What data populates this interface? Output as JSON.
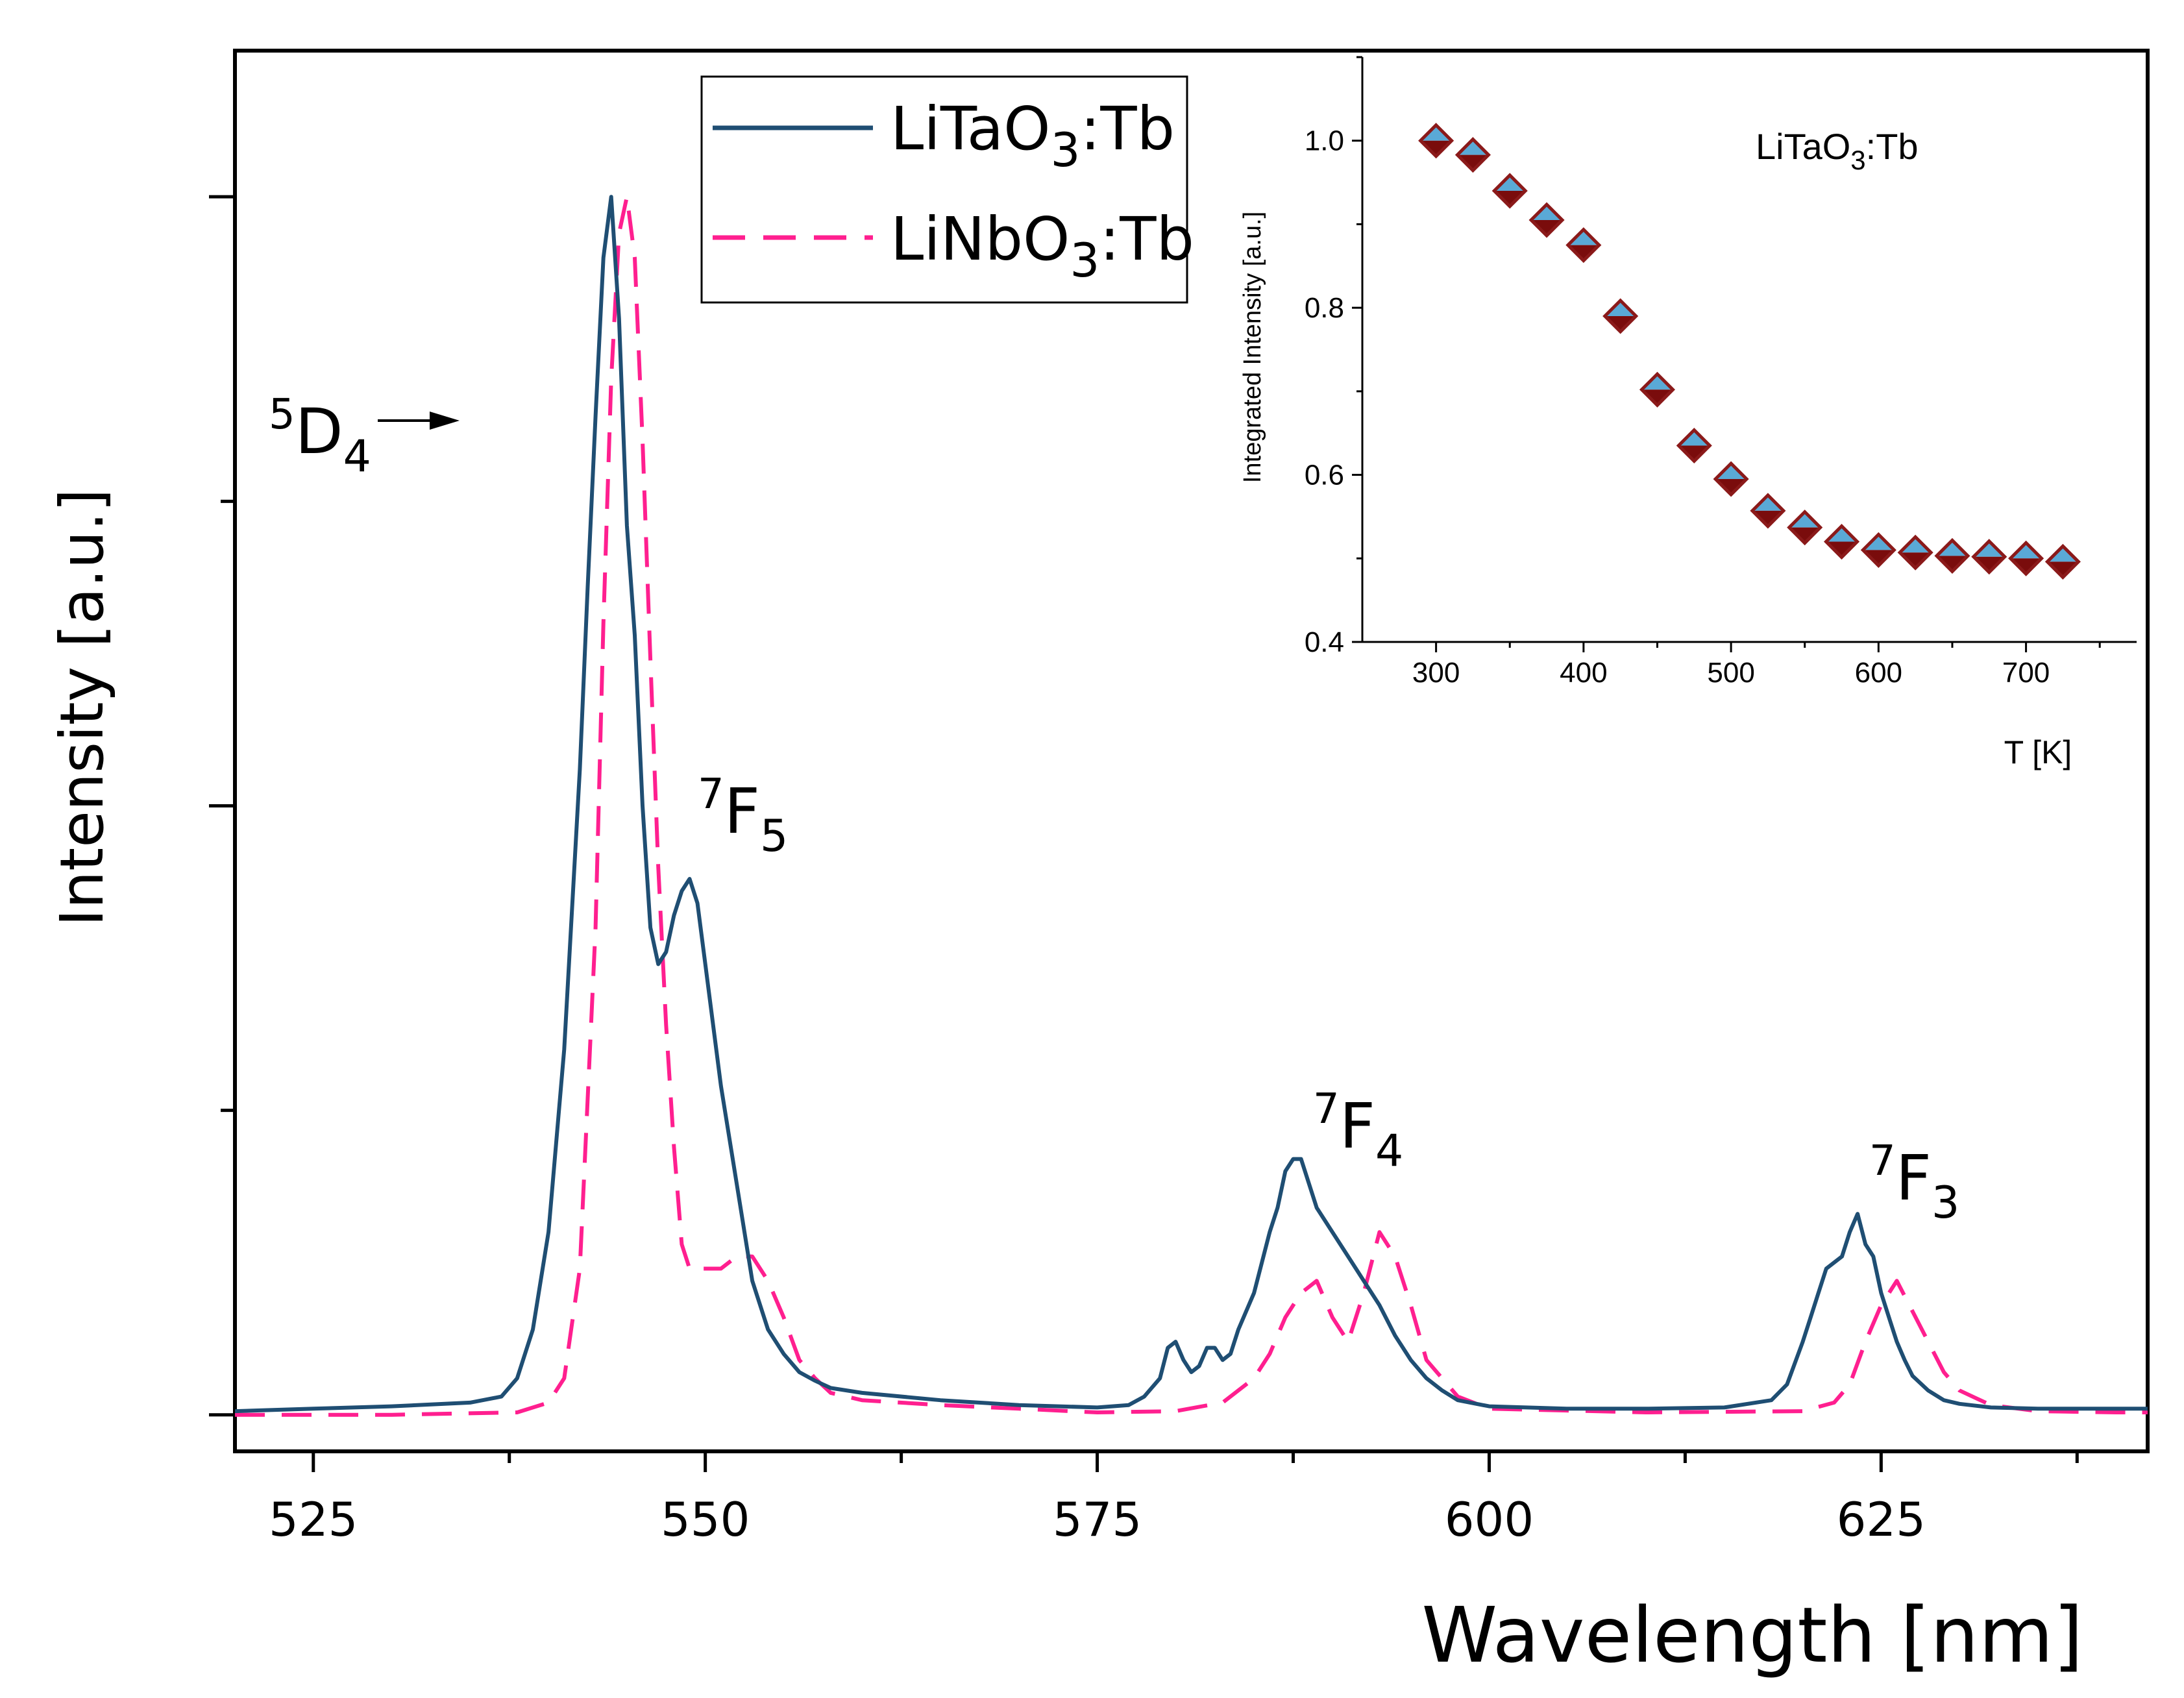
{
  "chart_data": [
    {
      "type": "line",
      "xlabel": "Wavelength [nm]",
      "ylabel": "Intensity [a.u.]",
      "xlim": [
        520,
        642
      ],
      "ylim": [
        -0.03,
        1.12
      ],
      "x_ticks": [
        "525",
        "550",
        "575",
        "600",
        "625"
      ],
      "x_tick_values": [
        525,
        550,
        575,
        600,
        625
      ],
      "y_ticks_labeled": false,
      "legend_position": "top-center",
      "colors": {
        "LiTaO3:Tb": "#1f4e73",
        "LiNbO3:Tb": "#ff1f8f"
      },
      "series": [
        {
          "name": "LiTaO3:Tb",
          "legend_label": {
            "base": "LiTaO",
            "sub": "3",
            "tail": ":Tb"
          },
          "line_style": "solid",
          "x": [
            520,
            525,
            530,
            535,
            537,
            538,
            539,
            540,
            541,
            542,
            542.5,
            543,
            543.5,
            544,
            544.5,
            545,
            545.5,
            546,
            546.5,
            547,
            547.5,
            548,
            548.5,
            549,
            549.5,
            550,
            551,
            552,
            553,
            554,
            555,
            556,
            557,
            558,
            560,
            565,
            570,
            575,
            577,
            578,
            579,
            579.5,
            580,
            580.5,
            581,
            581.5,
            582,
            582.5,
            583,
            583.5,
            584,
            585,
            586,
            586.5,
            587,
            587.5,
            588,
            589,
            590,
            591,
            592,
            593,
            594,
            595,
            596,
            597,
            598,
            600,
            605,
            610,
            615,
            618,
            619,
            620,
            620.5,
            621,
            621.5,
            622,
            622.5,
            623,
            623.5,
            624,
            624.5,
            625,
            625.5,
            626,
            626.5,
            627,
            628,
            629,
            630,
            632,
            635,
            640,
            642
          ],
          "y": [
            0.003,
            0.005,
            0.007,
            0.01,
            0.015,
            0.03,
            0.07,
            0.15,
            0.3,
            0.53,
            0.68,
            0.82,
            0.95,
            1.0,
            0.9,
            0.73,
            0.64,
            0.5,
            0.4,
            0.37,
            0.38,
            0.41,
            0.43,
            0.44,
            0.42,
            0.37,
            0.27,
            0.19,
            0.11,
            0.07,
            0.05,
            0.035,
            0.028,
            0.022,
            0.018,
            0.012,
            0.008,
            0.006,
            0.008,
            0.015,
            0.03,
            0.055,
            0.06,
            0.045,
            0.035,
            0.04,
            0.055,
            0.055,
            0.045,
            0.05,
            0.07,
            0.1,
            0.15,
            0.17,
            0.2,
            0.21,
            0.21,
            0.17,
            0.15,
            0.13,
            0.11,
            0.09,
            0.065,
            0.045,
            0.03,
            0.02,
            0.012,
            0.007,
            0.005,
            0.005,
            0.006,
            0.012,
            0.025,
            0.06,
            0.08,
            0.1,
            0.12,
            0.125,
            0.13,
            0.15,
            0.165,
            0.14,
            0.13,
            0.1,
            0.08,
            0.06,
            0.045,
            0.032,
            0.02,
            0.012,
            0.009,
            0.006,
            0.005,
            0.005,
            0.005
          ]
        },
        {
          "name": "LiNbO3:Tb",
          "legend_label": {
            "base": "LiNbO",
            "sub": "3",
            "tail": ":Tb"
          },
          "line_style": "dashed",
          "x": [
            520,
            530,
            538,
            540,
            541,
            542,
            543,
            543.5,
            544,
            544.5,
            545,
            545.5,
            546,
            546.5,
            547,
            547.5,
            548,
            548.5,
            549,
            549.5,
            550,
            551,
            552,
            553,
            554,
            555,
            556,
            557,
            558,
            560,
            565,
            570,
            575,
            580,
            583,
            585,
            586,
            587,
            588,
            589,
            590,
            591,
            592,
            593,
            594,
            595,
            596,
            598,
            600,
            610,
            620,
            622,
            623,
            624,
            625,
            626,
            627,
            628,
            629,
            630,
            632,
            635,
            640,
            642
          ],
          "y": [
            0.0,
            0.0,
            0.002,
            0.01,
            0.03,
            0.12,
            0.4,
            0.65,
            0.85,
            0.97,
            1.0,
            0.95,
            0.8,
            0.62,
            0.45,
            0.32,
            0.22,
            0.14,
            0.12,
            0.12,
            0.12,
            0.12,
            0.13,
            0.13,
            0.11,
            0.08,
            0.045,
            0.03,
            0.018,
            0.012,
            0.008,
            0.005,
            0.002,
            0.003,
            0.01,
            0.03,
            0.05,
            0.08,
            0.1,
            0.11,
            0.08,
            0.06,
            0.1,
            0.15,
            0.13,
            0.09,
            0.045,
            0.015,
            0.005,
            0.002,
            0.003,
            0.01,
            0.025,
            0.06,
            0.09,
            0.11,
            0.085,
            0.06,
            0.035,
            0.02,
            0.008,
            0.003,
            0.002,
            0.002
          ]
        }
      ],
      "annotations": [
        {
          "sup": "5",
          "base": "D",
          "sub": "4",
          "arrow": true
        },
        {
          "sup": "7",
          "base": "F",
          "sub": "5",
          "near_x": 549
        },
        {
          "sup": "7",
          "base": "F",
          "sub": "4",
          "near_x": 588
        },
        {
          "sup": "7",
          "base": "F",
          "sub": "3",
          "near_x": 624
        }
      ]
    },
    {
      "type": "scatter",
      "position": "inset-top-right",
      "label": {
        "base": "LiTaO",
        "sub": "3",
        "tail": ":Tb"
      },
      "xlabel": "T [K]",
      "ylabel": "Integrated Intensity [a.u.]",
      "xlim": [
        250,
        775
      ],
      "ylim": [
        0.4,
        1.1
      ],
      "x_ticks": [
        "300",
        "400",
        "500",
        "600",
        "700"
      ],
      "x_tick_values": [
        300,
        400,
        500,
        600,
        700
      ],
      "y_ticks": [
        "0.4",
        "0.6",
        "0.8",
        "1.0"
      ],
      "y_tick_values": [
        0.4,
        0.6,
        0.8,
        1.0
      ],
      "marker": "half-filled diamond",
      "marker_colors": {
        "top": "#5aa9d6",
        "bottom": "#7a0c0c",
        "edge": "#8b1a1a"
      },
      "x": [
        300,
        325,
        350,
        375,
        400,
        425,
        450,
        475,
        500,
        525,
        550,
        575,
        600,
        625,
        650,
        675,
        700,
        725
      ],
      "y": [
        1.0,
        0.983,
        0.94,
        0.905,
        0.875,
        0.79,
        0.702,
        0.635,
        0.595,
        0.557,
        0.537,
        0.52,
        0.51,
        0.507,
        0.503,
        0.502,
        0.5,
        0.496
      ]
    }
  ]
}
